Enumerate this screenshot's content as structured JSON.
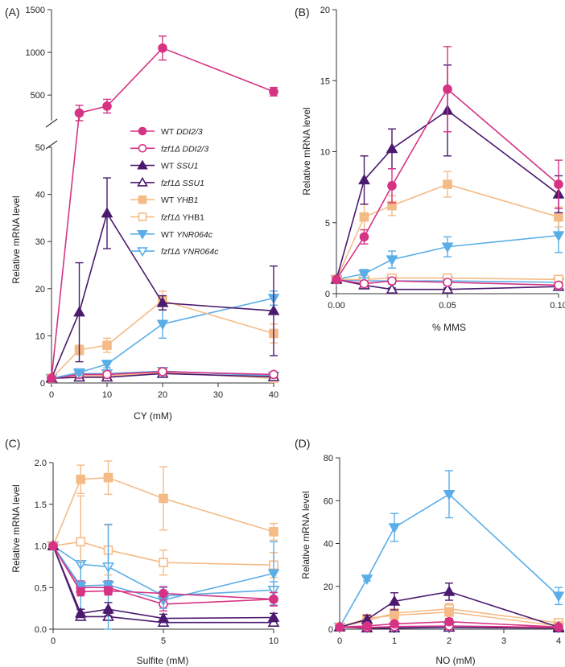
{
  "colors": {
    "ddi_wt": "#d63384",
    "ssu_wt": "#4b1a6e",
    "yhb_wt": "#f5bb86",
    "ynr_wt": "#5aaee8"
  },
  "legend": {
    "items": [
      {
        "prefix": "WT ",
        "gene": "DDI2/3",
        "series": "wt_ddi",
        "italic_prefix": false
      },
      {
        "prefix": "fzf1Δ ",
        "gene": "DDI2/3",
        "series": "ko_ddi",
        "italic_prefix": true
      },
      {
        "prefix": "WT ",
        "gene": "SSU1",
        "series": "wt_ssu",
        "italic_prefix": false
      },
      {
        "prefix": "fzf1Δ ",
        "gene": "SSU1",
        "series": "ko_ssu",
        "italic_prefix": true
      },
      {
        "prefix": "WT ",
        "gene": "YHB1",
        "series": "wt_yhb",
        "italic_prefix": false
      },
      {
        "prefix": "fzf1Δ ",
        "gene": " YHB1",
        "series": "ko_yhb",
        "italic_prefix": true,
        "gene_upright": true
      },
      {
        "prefix": "WT ",
        "gene": "YNR064c",
        "series": "wt_ynr",
        "italic_prefix": false
      },
      {
        "prefix": "fzf1Δ ",
        "gene": "YNR064c",
        "series": "ko_ynr",
        "italic_prefix": true
      }
    ]
  },
  "chart_data": [
    {
      "panel": "(A)",
      "type": "line",
      "xlabel": "CY (mM)",
      "ylabel": "Relative mRNA level",
      "xlim": [
        0,
        40
      ],
      "xticks": [
        0,
        10,
        20,
        30,
        40
      ],
      "broken_axis": true,
      "ylim_lower": [
        0,
        50
      ],
      "yticks_lower": [
        0,
        10,
        20,
        30,
        40,
        50
      ],
      "ylim_upper": [
        200,
        1500
      ],
      "yticks_upper": [
        500,
        1000,
        1500
      ],
      "x": [
        0,
        5,
        10,
        20,
        40
      ],
      "series": [
        {
          "id": "wt_ddi",
          "name": "WT DDI2/3",
          "values": [
            1,
            290,
            370,
            1050,
            540
          ],
          "errors": [
            0,
            90,
            80,
            140,
            50
          ]
        },
        {
          "id": "ko_ddi",
          "name": "fzf1Δ DDI2/3",
          "values": [
            1,
            1.8,
            1.8,
            2.4,
            1.8
          ],
          "errors": [
            0,
            0.5,
            0.5,
            0.6,
            0.4
          ]
        },
        {
          "id": "wt_ssu",
          "name": "WT SSU1",
          "values": [
            1,
            15,
            36,
            17,
            15.3
          ],
          "errors": [
            0,
            10.5,
            7.5,
            1.5,
            9.5
          ]
        },
        {
          "id": "ko_ssu",
          "name": "fzf1Δ SSU1",
          "values": [
            1,
            1.2,
            1.2,
            2,
            1.3
          ],
          "errors": [
            0,
            0.4,
            0.4,
            0.5,
            0.4
          ]
        },
        {
          "id": "wt_yhb",
          "name": "WT YHB1",
          "values": [
            1,
            7,
            8,
            17.5,
            10.5
          ],
          "errors": [
            0,
            1,
            1.5,
            2,
            2
          ]
        },
        {
          "id": "ko_yhb",
          "name": "fzf1Δ YHB1",
          "values": [
            1,
            1.5,
            1.5,
            2.2,
            1
          ],
          "errors": [
            0,
            0.4,
            0.4,
            0.5,
            0.3
          ]
        },
        {
          "id": "wt_ynr",
          "name": "WT YNR064c",
          "values": [
            1,
            2.2,
            4,
            12.5,
            18
          ],
          "errors": [
            0,
            0.5,
            0.8,
            3,
            1.5
          ]
        },
        {
          "id": "ko_ynr",
          "name": "fzf1Δ YNR064c",
          "values": [
            1,
            2,
            2,
            2.5,
            1.5
          ],
          "errors": [
            0,
            0.5,
            0.5,
            0.5,
            0.4
          ]
        }
      ]
    },
    {
      "panel": "(B)",
      "type": "line",
      "xlabel": "% MMS",
      "ylabel": "Relative mRNA level",
      "xlim": [
        0,
        0.1
      ],
      "xticks": [
        0,
        0.05,
        0.1
      ],
      "xtick_labels": [
        "0.00",
        "0.05",
        "0.10"
      ],
      "ylim": [
        0,
        20
      ],
      "yticks": [
        0,
        5,
        10,
        15,
        20
      ],
      "x": [
        0,
        0.0125,
        0.025,
        0.05,
        0.1
      ],
      "series": [
        {
          "id": "wt_ddi",
          "name": "WT DDI2/3",
          "values": [
            1,
            4,
            7.6,
            14.4,
            7.7
          ],
          "errors": [
            0,
            0.5,
            1.2,
            3,
            1.7
          ]
        },
        {
          "id": "ko_ddi",
          "name": "fzf1Δ DDI2/3",
          "values": [
            1,
            0.7,
            0.9,
            0.8,
            0.6
          ],
          "errors": [
            0,
            0.2,
            0.2,
            0.2,
            0.2
          ]
        },
        {
          "id": "wt_ssu",
          "name": "WT SSU1",
          "values": [
            1,
            8,
            10.2,
            12.9,
            7
          ],
          "errors": [
            0,
            1.7,
            1.4,
            3.2,
            1.3
          ]
        },
        {
          "id": "ko_ssu",
          "name": "fzf1Δ SSU1",
          "values": [
            1,
            0.6,
            0.3,
            0.3,
            0.5
          ],
          "errors": [
            0,
            0.2,
            0.1,
            0.1,
            0.1
          ]
        },
        {
          "id": "wt_yhb",
          "name": "WT YHB1",
          "values": [
            1,
            5.4,
            6.2,
            7.7,
            5.4
          ],
          "errors": [
            0,
            0.9,
            0.7,
            0.9,
            0.7
          ]
        },
        {
          "id": "ko_yhb",
          "name": "fzf1Δ YHB1",
          "values": [
            1,
            1,
            1.1,
            1.1,
            1
          ],
          "errors": [
            0,
            0.2,
            0.2,
            0.2,
            0.2
          ]
        },
        {
          "id": "wt_ynr",
          "name": "WT YNR064c",
          "values": [
            1,
            1.4,
            2.4,
            3.3,
            4.1
          ],
          "errors": [
            0,
            0.3,
            0.6,
            0.7,
            1.2
          ]
        },
        {
          "id": "ko_ynr",
          "name": "fzf1Δ YNR064c",
          "values": [
            1,
            0.9,
            0.9,
            0.9,
            0.8
          ],
          "errors": [
            0,
            0.2,
            0.2,
            0.2,
            0.2
          ]
        }
      ]
    },
    {
      "panel": "(C)",
      "type": "line",
      "xlabel": "Sulfite (mM)",
      "ylabel": "Relative mRNA level",
      "xlim": [
        0,
        10
      ],
      "xticks": [
        0,
        5,
        10
      ],
      "ylim": [
        0,
        2
      ],
      "yticks": [
        0,
        0.5,
        1,
        1.5,
        2
      ],
      "ytick_labels": [
        "0.0",
        "0.5",
        "1.0",
        "1.5",
        "2.0"
      ],
      "x": [
        0,
        1.25,
        2.5,
        5,
        10
      ],
      "series": [
        {
          "id": "wt_ddi",
          "name": "WT DDI2/3",
          "values": [
            1,
            0.45,
            0.46,
            0.43,
            0.36
          ],
          "errors": [
            0,
            0.05,
            0.05,
            0.08,
            0.08
          ]
        },
        {
          "id": "ko_ddi",
          "name": "fzf1Δ DDI2/3",
          "values": [
            1,
            0.5,
            0.5,
            0.3,
            0.36
          ],
          "errors": [
            0,
            0.08,
            0.08,
            0.08,
            0.08
          ]
        },
        {
          "id": "wt_ssu",
          "name": "WT SSU1",
          "values": [
            1,
            0.19,
            0.24,
            0.13,
            0.14
          ],
          "errors": [
            0,
            0.05,
            0.08,
            0.05,
            0.05
          ]
        },
        {
          "id": "ko_ssu",
          "name": "fzf1Δ SSU1",
          "values": [
            1,
            0.15,
            0.15,
            0.08,
            0.08
          ],
          "errors": [
            0,
            0.04,
            0.04,
            0.03,
            0.03
          ]
        },
        {
          "id": "wt_yhb",
          "name": "WT YHB1",
          "values": [
            1,
            1.8,
            1.82,
            1.57,
            1.17
          ],
          "errors": [
            0,
            0.17,
            0.2,
            0.38,
            0.1
          ]
        },
        {
          "id": "ko_yhb",
          "name": "fzf1Δ YHB1",
          "values": [
            1,
            1.05,
            0.95,
            0.8,
            0.77
          ],
          "errors": [
            0,
            0.55,
            0.3,
            0.15,
            0.15
          ]
        },
        {
          "id": "wt_ynr",
          "name": "WT YNR064c",
          "values": [
            1,
            0.52,
            0.53,
            0.35,
            0.67
          ],
          "errors": [
            0,
            0.28,
            0.73,
            0.1,
            0.38
          ]
        },
        {
          "id": "ko_ynr",
          "name": "fzf1Δ YNR064c",
          "values": [
            1,
            0.78,
            0.75,
            0.4,
            0.47
          ],
          "errors": [
            0,
            0.25,
            0.2,
            0.1,
            0.1
          ]
        }
      ]
    },
    {
      "panel": "(D)",
      "type": "line",
      "xlabel": "NO (mM)",
      "ylabel": "Relative mRNA level",
      "xlim": [
        0,
        4
      ],
      "xticks": [
        0,
        1,
        2,
        3,
        4
      ],
      "ylim": [
        0,
        80
      ],
      "yticks": [
        0,
        20,
        40,
        60,
        80
      ],
      "x": [
        0,
        0.5,
        1,
        2,
        4
      ],
      "series": [
        {
          "id": "wt_ddi",
          "name": "WT DDI2/3",
          "values": [
            1,
            1.5,
            2.5,
            3.5,
            1
          ],
          "errors": [
            0,
            0.5,
            1,
            1.5,
            0.5
          ]
        },
        {
          "id": "ko_ddi",
          "name": "fzf1Δ DDI2/3",
          "values": [
            1,
            0.8,
            1.2,
            1.5,
            0.8
          ],
          "errors": [
            0,
            0.3,
            0.4,
            0.5,
            0.3
          ]
        },
        {
          "id": "wt_ssu",
          "name": "WT SSU1",
          "values": [
            1,
            4.5,
            13,
            17.5,
            1
          ],
          "errors": [
            0,
            2,
            4,
            4,
            0.5
          ]
        },
        {
          "id": "ko_ssu",
          "name": "fzf1Δ SSU1",
          "values": [
            1,
            0.5,
            0.5,
            0.8,
            0.5
          ],
          "errors": [
            0,
            0.2,
            0.2,
            0.3,
            0.2
          ]
        },
        {
          "id": "wt_yhb",
          "name": "WT YHB1",
          "values": [
            1,
            5,
            6.5,
            8,
            1.5
          ],
          "errors": [
            0,
            1,
            1.5,
            2,
            0.5
          ]
        },
        {
          "id": "ko_yhb",
          "name": "fzf1Δ YHB1",
          "values": [
            1,
            4,
            7.5,
            9.5,
            3
          ],
          "errors": [
            0,
            1.5,
            2,
            2.5,
            1
          ]
        },
        {
          "id": "wt_ynr",
          "name": "WT YNR064c",
          "values": [
            1,
            23.5,
            47.5,
            63,
            15.5
          ],
          "errors": [
            0,
            1,
            6.5,
            11,
            4
          ]
        },
        {
          "id": "ko_ynr",
          "name": "fzf1Δ YNR064c",
          "values": [
            1,
            0.8,
            1,
            1.2,
            0.8
          ],
          "errors": [
            0,
            0.3,
            0.3,
            0.4,
            0.3
          ]
        }
      ]
    }
  ]
}
